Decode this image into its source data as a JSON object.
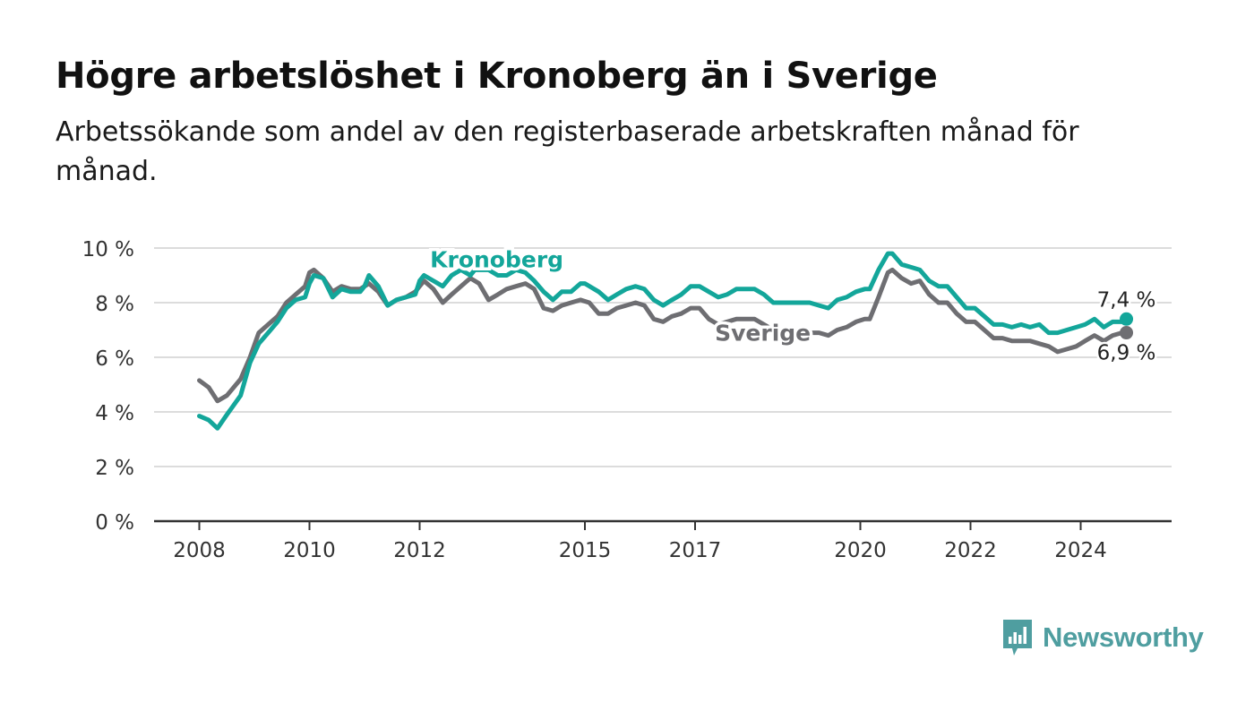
{
  "title": "Högre arbetslöshet i Kronoberg än i Sverige",
  "subtitle": "Arbetssökande som andel av den registerbaserade arbetskraften månad för månad.",
  "brand": "Newsworthy",
  "colors": {
    "kronoberg": "#13a69a",
    "sverige": "#6e6e72",
    "grid": "#dcdcdc",
    "axis": "#333333",
    "brand": "#4f9ea0"
  },
  "chart_data": {
    "type": "line",
    "ylim": [
      0,
      10
    ],
    "xlim": [
      2008,
      2025.5
    ],
    "y_ticks": [
      {
        "value": 0,
        "label": "0 %"
      },
      {
        "value": 2,
        "label": "2 %"
      },
      {
        "value": 4,
        "label": "4 %"
      },
      {
        "value": 6,
        "label": "6 %"
      },
      {
        "value": 8,
        "label": "8 %"
      },
      {
        "value": 10,
        "label": "10 %"
      }
    ],
    "x_ticks": [
      {
        "value": 2008,
        "label": "2008"
      },
      {
        "value": 2010,
        "label": "2010"
      },
      {
        "value": 2012,
        "label": "2012"
      },
      {
        "value": 2015,
        "label": "2015"
      },
      {
        "value": 2017,
        "label": "2017"
      },
      {
        "value": 2020,
        "label": "2020"
      },
      {
        "value": 2022,
        "label": "2022"
      },
      {
        "value": 2024,
        "label": "2024"
      }
    ],
    "grid": true,
    "series": [
      {
        "name": "Kronoberg",
        "color": "#13a69a",
        "end_label": "7,4 %",
        "points": [
          [
            2008.0,
            3.85
          ],
          [
            2008.17,
            3.7
          ],
          [
            2008.33,
            3.4
          ],
          [
            2008.5,
            3.9
          ],
          [
            2008.75,
            4.6
          ],
          [
            2008.92,
            5.8
          ],
          [
            2009.08,
            6.5
          ],
          [
            2009.25,
            6.9
          ],
          [
            2009.42,
            7.3
          ],
          [
            2009.58,
            7.8
          ],
          [
            2009.75,
            8.1
          ],
          [
            2009.92,
            8.2
          ],
          [
            2010.0,
            8.7
          ],
          [
            2010.08,
            9.0
          ],
          [
            2010.25,
            8.9
          ],
          [
            2010.42,
            8.2
          ],
          [
            2010.58,
            8.5
          ],
          [
            2010.75,
            8.4
          ],
          [
            2010.92,
            8.4
          ],
          [
            2011.0,
            8.6
          ],
          [
            2011.08,
            9.0
          ],
          [
            2011.25,
            8.6
          ],
          [
            2011.42,
            7.9
          ],
          [
            2011.58,
            8.1
          ],
          [
            2011.75,
            8.2
          ],
          [
            2011.92,
            8.3
          ],
          [
            2012.0,
            8.8
          ],
          [
            2012.08,
            9.0
          ],
          [
            2012.25,
            8.8
          ],
          [
            2012.42,
            8.6
          ],
          [
            2012.58,
            9.0
          ],
          [
            2012.75,
            9.2
          ],
          [
            2012.92,
            9.0
          ],
          [
            2013.0,
            9.2
          ],
          [
            2013.25,
            9.2
          ],
          [
            2013.42,
            9.0
          ],
          [
            2013.58,
            9.0
          ],
          [
            2013.75,
            9.2
          ],
          [
            2013.92,
            9.1
          ],
          [
            2014.08,
            8.8
          ],
          [
            2014.25,
            8.4
          ],
          [
            2014.42,
            8.1
          ],
          [
            2014.58,
            8.4
          ],
          [
            2014.75,
            8.4
          ],
          [
            2014.92,
            8.7
          ],
          [
            2015.0,
            8.7
          ],
          [
            2015.25,
            8.4
          ],
          [
            2015.42,
            8.1
          ],
          [
            2015.58,
            8.3
          ],
          [
            2015.75,
            8.5
          ],
          [
            2015.92,
            8.6
          ],
          [
            2016.08,
            8.5
          ],
          [
            2016.25,
            8.1
          ],
          [
            2016.42,
            7.9
          ],
          [
            2016.58,
            8.1
          ],
          [
            2016.75,
            8.3
          ],
          [
            2016.92,
            8.6
          ],
          [
            2017.08,
            8.6
          ],
          [
            2017.25,
            8.4
          ],
          [
            2017.42,
            8.2
          ],
          [
            2017.58,
            8.3
          ],
          [
            2017.75,
            8.5
          ],
          [
            2017.92,
            8.5
          ],
          [
            2018.08,
            8.5
          ],
          [
            2018.25,
            8.3
          ],
          [
            2018.42,
            8.0
          ],
          [
            2018.58,
            8.0
          ],
          [
            2018.75,
            8.0
          ],
          [
            2018.92,
            8.0
          ],
          [
            2019.08,
            8.0
          ],
          [
            2019.25,
            7.9
          ],
          [
            2019.42,
            7.8
          ],
          [
            2019.58,
            8.1
          ],
          [
            2019.75,
            8.2
          ],
          [
            2019.92,
            8.4
          ],
          [
            2020.08,
            8.5
          ],
          [
            2020.17,
            8.5
          ],
          [
            2020.33,
            9.2
          ],
          [
            2020.5,
            9.8
          ],
          [
            2020.58,
            9.8
          ],
          [
            2020.75,
            9.4
          ],
          [
            2020.92,
            9.3
          ],
          [
            2021.08,
            9.2
          ],
          [
            2021.25,
            8.8
          ],
          [
            2021.42,
            8.6
          ],
          [
            2021.58,
            8.6
          ],
          [
            2021.75,
            8.2
          ],
          [
            2021.92,
            7.8
          ],
          [
            2022.08,
            7.8
          ],
          [
            2022.25,
            7.5
          ],
          [
            2022.42,
            7.2
          ],
          [
            2022.58,
            7.2
          ],
          [
            2022.75,
            7.1
          ],
          [
            2022.92,
            7.2
          ],
          [
            2023.08,
            7.1
          ],
          [
            2023.25,
            7.2
          ],
          [
            2023.42,
            6.9
          ],
          [
            2023.58,
            6.9
          ],
          [
            2023.75,
            7.0
          ],
          [
            2023.92,
            7.1
          ],
          [
            2024.08,
            7.2
          ],
          [
            2024.25,
            7.4
          ],
          [
            2024.42,
            7.1
          ],
          [
            2024.58,
            7.3
          ],
          [
            2024.75,
            7.3
          ],
          [
            2024.83,
            7.4
          ]
        ]
      },
      {
        "name": "Sverige",
        "color": "#6e6e72",
        "end_label": "6,9 %",
        "points": [
          [
            2008.0,
            5.15
          ],
          [
            2008.17,
            4.9
          ],
          [
            2008.33,
            4.4
          ],
          [
            2008.5,
            4.6
          ],
          [
            2008.75,
            5.2
          ],
          [
            2008.92,
            6.0
          ],
          [
            2009.08,
            6.9
          ],
          [
            2009.25,
            7.2
          ],
          [
            2009.42,
            7.5
          ],
          [
            2009.58,
            8.0
          ],
          [
            2009.75,
            8.3
          ],
          [
            2009.92,
            8.6
          ],
          [
            2010.0,
            9.1
          ],
          [
            2010.08,
            9.2
          ],
          [
            2010.25,
            8.9
          ],
          [
            2010.42,
            8.4
          ],
          [
            2010.58,
            8.6
          ],
          [
            2010.75,
            8.5
          ],
          [
            2010.92,
            8.5
          ],
          [
            2011.08,
            8.7
          ],
          [
            2011.25,
            8.4
          ],
          [
            2011.42,
            7.9
          ],
          [
            2011.58,
            8.1
          ],
          [
            2011.75,
            8.2
          ],
          [
            2011.92,
            8.4
          ],
          [
            2012.08,
            8.8
          ],
          [
            2012.25,
            8.5
          ],
          [
            2012.42,
            8.0
          ],
          [
            2012.58,
            8.3
          ],
          [
            2012.75,
            8.6
          ],
          [
            2012.92,
            8.9
          ],
          [
            2013.08,
            8.7
          ],
          [
            2013.25,
            8.1
          ],
          [
            2013.42,
            8.3
          ],
          [
            2013.58,
            8.5
          ],
          [
            2013.75,
            8.6
          ],
          [
            2013.92,
            8.7
          ],
          [
            2014.08,
            8.5
          ],
          [
            2014.25,
            7.8
          ],
          [
            2014.42,
            7.7
          ],
          [
            2014.58,
            7.9
          ],
          [
            2014.75,
            8.0
          ],
          [
            2014.92,
            8.1
          ],
          [
            2015.08,
            8.0
          ],
          [
            2015.25,
            7.6
          ],
          [
            2015.42,
            7.6
          ],
          [
            2015.58,
            7.8
          ],
          [
            2015.75,
            7.9
          ],
          [
            2015.92,
            8.0
          ],
          [
            2016.08,
            7.9
          ],
          [
            2016.25,
            7.4
          ],
          [
            2016.42,
            7.3
          ],
          [
            2016.58,
            7.5
          ],
          [
            2016.75,
            7.6
          ],
          [
            2016.92,
            7.8
          ],
          [
            2017.08,
            7.8
          ],
          [
            2017.25,
            7.4
          ],
          [
            2017.42,
            7.2
          ],
          [
            2017.58,
            7.3
          ],
          [
            2017.75,
            7.4
          ],
          [
            2017.92,
            7.4
          ],
          [
            2018.08,
            7.4
          ],
          [
            2018.25,
            7.2
          ],
          [
            2018.42,
            7.0
          ],
          [
            2018.58,
            7.0
          ],
          [
            2018.75,
            7.0
          ],
          [
            2018.92,
            7.0
          ],
          [
            2019.08,
            6.9
          ],
          [
            2019.25,
            6.9
          ],
          [
            2019.42,
            6.8
          ],
          [
            2019.58,
            7.0
          ],
          [
            2019.75,
            7.1
          ],
          [
            2019.92,
            7.3
          ],
          [
            2020.08,
            7.4
          ],
          [
            2020.17,
            7.4
          ],
          [
            2020.33,
            8.2
          ],
          [
            2020.5,
            9.1
          ],
          [
            2020.58,
            9.2
          ],
          [
            2020.75,
            8.9
          ],
          [
            2020.92,
            8.7
          ],
          [
            2021.08,
            8.8
          ],
          [
            2021.25,
            8.3
          ],
          [
            2021.42,
            8.0
          ],
          [
            2021.58,
            8.0
          ],
          [
            2021.75,
            7.6
          ],
          [
            2021.92,
            7.3
          ],
          [
            2022.08,
            7.3
          ],
          [
            2022.25,
            7.0
          ],
          [
            2022.42,
            6.7
          ],
          [
            2022.58,
            6.7
          ],
          [
            2022.75,
            6.6
          ],
          [
            2022.92,
            6.6
          ],
          [
            2023.08,
            6.6
          ],
          [
            2023.25,
            6.5
          ],
          [
            2023.42,
            6.4
          ],
          [
            2023.58,
            6.2
          ],
          [
            2023.75,
            6.3
          ],
          [
            2023.92,
            6.4
          ],
          [
            2024.08,
            6.6
          ],
          [
            2024.25,
            6.8
          ],
          [
            2024.42,
            6.6
          ],
          [
            2024.58,
            6.8
          ],
          [
            2024.75,
            6.9
          ],
          [
            2024.83,
            6.9
          ]
        ]
      }
    ]
  }
}
